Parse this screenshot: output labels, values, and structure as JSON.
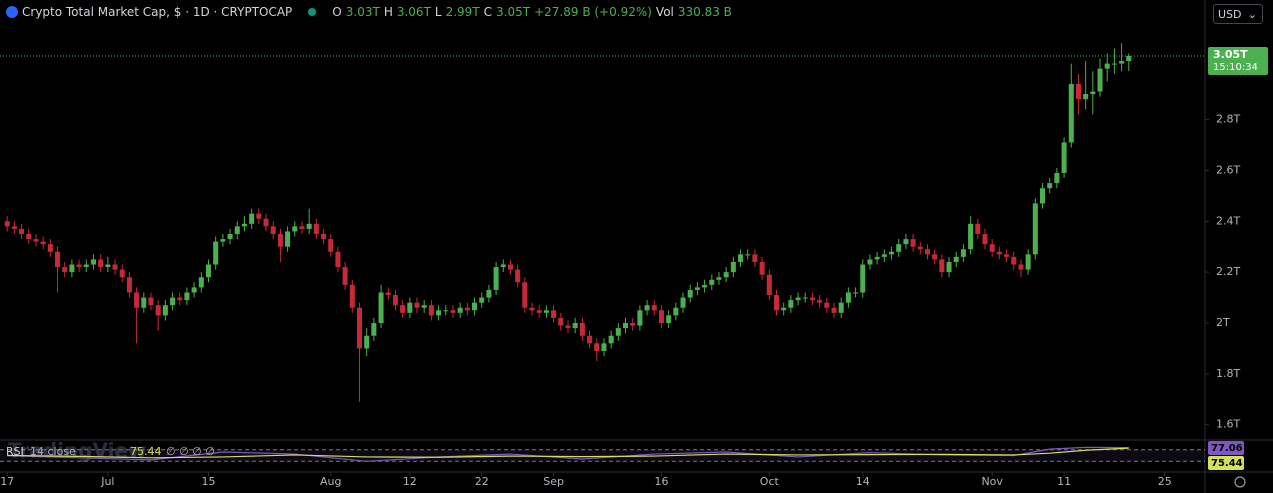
{
  "header": {
    "title": "Crypto Total Market Cap, $ · 1D · CRYPTOCAP",
    "open_label": "O",
    "open": "3.03T",
    "high_label": "H",
    "high": "3.06T",
    "low_label": "L",
    "low": "2.99T",
    "close_label": "C",
    "close": "3.05T",
    "change": "+27.89 B (+0.92%)",
    "vol_label": "Vol",
    "vol": "330.83 B"
  },
  "currency": "USD",
  "countdown": "15:10:34",
  "watermark": "TradingView",
  "chart_data": [
    {
      "type": "candlestick",
      "up_color": "#4caf50",
      "down_color": "#c62a37",
      "open": [
        2.4,
        2.38,
        2.37,
        2.35,
        2.33,
        2.32,
        2.31,
        2.28,
        2.22,
        2.2,
        2.23,
        2.22,
        2.23,
        2.25,
        2.22,
        2.23,
        2.21,
        2.18,
        2.12,
        2.06,
        2.1,
        2.07,
        2.03,
        2.07,
        2.1,
        2.09,
        2.12,
        2.14,
        2.18,
        2.23,
        2.32,
        2.33,
        2.35,
        2.38,
        2.39,
        2.43,
        2.41,
        2.38,
        2.35,
        2.3,
        2.36,
        2.38,
        2.37,
        2.39,
        2.35,
        2.33,
        2.28,
        2.22,
        2.15,
        2.06,
        1.9,
        1.95,
        2.0,
        2.12,
        2.11,
        2.07,
        2.04,
        2.08,
        2.06,
        2.07,
        2.03,
        2.05,
        2.05,
        2.04,
        2.06,
        2.05,
        2.08,
        2.1,
        2.13,
        2.22,
        2.23,
        2.21,
        2.16,
        2.06,
        2.05,
        2.04,
        2.05,
        2.02,
        1.99,
        1.98,
        2.0,
        1.95,
        1.92,
        1.89,
        1.92,
        1.95,
        1.98,
        2.0,
        1.99,
        2.05,
        2.07,
        2.05,
        2.0,
        2.03,
        2.06,
        2.1,
        2.13,
        2.14,
        2.15,
        2.17,
        2.18,
        2.2,
        2.24,
        2.27,
        2.27,
        2.24,
        2.19,
        2.11,
        2.05,
        2.06,
        2.09,
        2.1,
        2.1,
        2.09,
        2.08,
        2.06,
        2.04,
        2.08,
        2.12,
        2.12,
        2.23,
        2.25,
        2.26,
        2.27,
        2.28,
        2.31,
        2.33,
        2.3,
        2.29,
        2.27,
        2.25,
        2.2,
        2.24,
        2.26,
        2.29,
        2.39,
        2.35,
        2.31,
        2.28,
        2.27,
        2.26,
        2.23,
        2.21,
        2.27,
        2.47,
        2.53,
        2.55,
        2.59,
        2.71,
        2.94,
        2.88,
        2.9,
        2.91,
        3.0,
        3.02,
        3.02,
        3.03
      ],
      "high": [
        2.42,
        2.4,
        2.39,
        2.37,
        2.35,
        2.34,
        2.33,
        2.3,
        2.24,
        2.25,
        2.25,
        2.25,
        2.27,
        2.27,
        2.26,
        2.25,
        2.23,
        2.2,
        2.14,
        2.12,
        2.12,
        2.09,
        2.09,
        2.12,
        2.12,
        2.14,
        2.16,
        2.2,
        2.25,
        2.34,
        2.35,
        2.37,
        2.4,
        2.42,
        2.45,
        2.45,
        2.43,
        2.4,
        2.37,
        2.38,
        2.4,
        2.4,
        2.45,
        2.41,
        2.37,
        2.35,
        2.3,
        2.24,
        2.17,
        2.08,
        1.98,
        2.02,
        2.15,
        2.14,
        2.13,
        2.09,
        2.1,
        2.1,
        2.09,
        2.09,
        2.07,
        2.07,
        2.07,
        2.08,
        2.08,
        2.1,
        2.12,
        2.15,
        2.24,
        2.25,
        2.25,
        2.23,
        2.18,
        2.08,
        2.07,
        2.07,
        2.07,
        2.04,
        2.01,
        2.02,
        2.02,
        1.97,
        1.94,
        1.94,
        1.97,
        2.0,
        2.02,
        2.02,
        2.07,
        2.09,
        2.09,
        2.07,
        2.05,
        2.08,
        2.12,
        2.15,
        2.16,
        2.17,
        2.19,
        2.2,
        2.22,
        2.26,
        2.29,
        2.29,
        2.29,
        2.26,
        2.21,
        2.13,
        2.08,
        2.11,
        2.12,
        2.12,
        2.12,
        2.11,
        2.1,
        2.08,
        2.1,
        2.14,
        2.14,
        2.25,
        2.27,
        2.28,
        2.29,
        2.3,
        2.33,
        2.35,
        2.35,
        2.32,
        2.31,
        2.29,
        2.27,
        2.26,
        2.28,
        2.31,
        2.42,
        2.41,
        2.37,
        2.33,
        2.3,
        2.29,
        2.28,
        2.25,
        2.29,
        2.49,
        2.55,
        2.57,
        2.61,
        2.73,
        3.02,
        2.98,
        3.03,
        2.99,
        3.04,
        3.06,
        3.08,
        3.1,
        3.06
      ],
      "low": [
        2.36,
        2.35,
        2.33,
        2.31,
        2.3,
        2.29,
        2.26,
        2.12,
        2.18,
        2.18,
        2.2,
        2.2,
        2.21,
        2.2,
        2.2,
        2.19,
        2.16,
        2.1,
        1.92,
        2.04,
        2.05,
        1.97,
        2.01,
        2.05,
        2.07,
        2.07,
        2.1,
        2.12,
        2.16,
        2.21,
        2.3,
        2.31,
        2.33,
        2.36,
        2.37,
        2.39,
        2.36,
        2.33,
        2.24,
        2.28,
        2.34,
        2.35,
        2.35,
        2.33,
        2.31,
        2.26,
        2.2,
        2.13,
        2.04,
        1.69,
        1.87,
        1.93,
        1.98,
        2.09,
        2.05,
        2.02,
        2.02,
        2.04,
        2.04,
        2.01,
        2.01,
        2.03,
        2.02,
        2.02,
        2.03,
        2.03,
        2.06,
        2.08,
        2.11,
        2.2,
        2.19,
        2.14,
        2.04,
        2.03,
        2.02,
        2.02,
        2.0,
        1.97,
        1.96,
        1.96,
        1.93,
        1.9,
        1.85,
        1.87,
        1.9,
        1.93,
        1.96,
        1.97,
        1.97,
        2.03,
        2.03,
        1.98,
        1.98,
        2.01,
        2.04,
        2.08,
        2.11,
        2.12,
        2.13,
        2.15,
        2.16,
        2.18,
        2.22,
        2.25,
        2.22,
        2.17,
        2.09,
        2.03,
        2.03,
        2.04,
        2.07,
        2.08,
        2.07,
        2.06,
        2.04,
        2.02,
        2.02,
        2.06,
        2.1,
        2.1,
        2.21,
        2.23,
        2.24,
        2.25,
        2.26,
        2.29,
        2.28,
        2.27,
        2.25,
        2.23,
        2.18,
        2.18,
        2.22,
        2.24,
        2.27,
        2.33,
        2.29,
        2.26,
        2.25,
        2.24,
        2.21,
        2.18,
        2.19,
        2.25,
        2.45,
        2.51,
        2.53,
        2.57,
        2.69,
        2.82,
        2.84,
        2.82,
        2.89,
        2.95,
        2.98,
        2.99,
        2.99
      ],
      "close": [
        2.38,
        2.37,
        2.35,
        2.33,
        2.32,
        2.31,
        2.28,
        2.22,
        2.2,
        2.23,
        2.22,
        2.23,
        2.25,
        2.22,
        2.23,
        2.21,
        2.18,
        2.12,
        2.06,
        2.1,
        2.07,
        2.03,
        2.07,
        2.1,
        2.09,
        2.12,
        2.14,
        2.18,
        2.23,
        2.32,
        2.33,
        2.35,
        2.38,
        2.39,
        2.43,
        2.41,
        2.38,
        2.35,
        2.3,
        2.36,
        2.38,
        2.37,
        2.39,
        2.35,
        2.33,
        2.28,
        2.22,
        2.15,
        2.06,
        1.9,
        1.95,
        2.0,
        2.12,
        2.11,
        2.07,
        2.04,
        2.08,
        2.06,
        2.07,
        2.03,
        2.05,
        2.05,
        2.04,
        2.06,
        2.05,
        2.08,
        2.1,
        2.13,
        2.22,
        2.23,
        2.21,
        2.16,
        2.06,
        2.05,
        2.04,
        2.05,
        2.02,
        1.99,
        1.98,
        2.0,
        1.95,
        1.92,
        1.89,
        1.92,
        1.95,
        1.98,
        2.0,
        1.99,
        2.05,
        2.07,
        2.05,
        2.0,
        2.03,
        2.06,
        2.1,
        2.13,
        2.14,
        2.15,
        2.17,
        2.18,
        2.2,
        2.24,
        2.27,
        2.27,
        2.24,
        2.19,
        2.11,
        2.05,
        2.06,
        2.09,
        2.1,
        2.1,
        2.09,
        2.08,
        2.06,
        2.04,
        2.08,
        2.12,
        2.12,
        2.23,
        2.25,
        2.26,
        2.27,
        2.28,
        2.31,
        2.33,
        2.3,
        2.29,
        2.27,
        2.25,
        2.2,
        2.24,
        2.26,
        2.29,
        2.39,
        2.35,
        2.31,
        2.28,
        2.27,
        2.26,
        2.23,
        2.21,
        2.27,
        2.47,
        2.53,
        2.55,
        2.59,
        2.71,
        2.94,
        2.88,
        2.9,
        2.91,
        3.0,
        3.02,
        3.02,
        3.03,
        3.05
      ],
      "xlim": [
        -1,
        166.6
      ],
      "xticks": [
        {
          "value": 0,
          "label": "17"
        },
        {
          "value": 14,
          "label": "Jul"
        },
        {
          "value": 28,
          "label": "15"
        },
        {
          "value": 45,
          "label": "Aug"
        },
        {
          "value": 56,
          "label": "12"
        },
        {
          "value": 66,
          "label": "22"
        },
        {
          "value": 76,
          "label": "Sep"
        },
        {
          "value": 91,
          "label": "16"
        },
        {
          "value": 106,
          "label": "Oct"
        },
        {
          "value": 119,
          "label": "14"
        },
        {
          "value": 137,
          "label": "Nov"
        },
        {
          "value": 147,
          "label": "11"
        },
        {
          "value": 161,
          "label": "25"
        }
      ],
      "ylim": [
        1.54,
        3.27
      ],
      "yticks": [
        {
          "value": 1.6,
          "label": "1.6T"
        },
        {
          "value": 1.8,
          "label": "1.8T"
        },
        {
          "value": 2,
          "label": "2T"
        },
        {
          "value": 2.2,
          "label": "2.2T"
        },
        {
          "value": 2.4,
          "label": "2.4T"
        },
        {
          "value": 2.6,
          "label": "2.6T"
        },
        {
          "value": 2.8,
          "label": "2.8T"
        }
      ]
    },
    {
      "type": "line",
      "title": "RSI",
      "subtitle": "14 close",
      "legend_extra": "∅ ∅ ∅ ∅",
      "ylim": [
        0,
        100
      ],
      "levels": [
        70,
        30
      ],
      "xlim": [
        -1,
        166.6
      ],
      "series": [
        {
          "color": "#7e57c2",
          "x": [
            0,
            10,
            20,
            30,
            40,
            50,
            60,
            70,
            80,
            90,
            100,
            110,
            120,
            130,
            140,
            145,
            150,
            156
          ],
          "values": [
            50,
            42,
            35,
            62,
            55,
            30,
            45,
            55,
            38,
            55,
            62,
            45,
            60,
            52,
            50,
            72,
            78,
            77.06
          ]
        },
        {
          "color": "#d4e157",
          "x": [
            0,
            10,
            20,
            30,
            40,
            50,
            60,
            70,
            80,
            90,
            100,
            110,
            120,
            130,
            140,
            145,
            150,
            156
          ],
          "values": [
            50,
            47,
            42,
            45,
            52,
            45,
            44,
            48,
            46,
            48,
            55,
            52,
            53,
            54,
            52,
            58,
            68,
            75.44
          ]
        }
      ]
    }
  ]
}
